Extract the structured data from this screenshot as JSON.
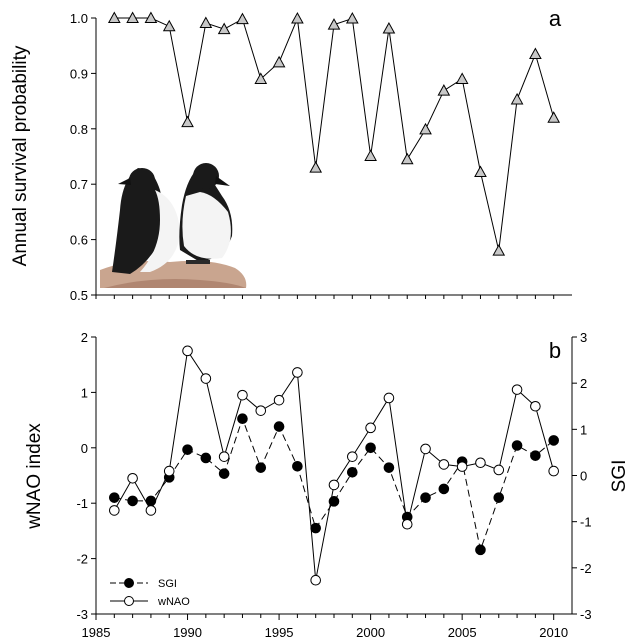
{
  "chart_data": [
    {
      "type": "line",
      "panel_label": "a",
      "ylabel": "Annual survival probability",
      "xlim": [
        1985,
        2011
      ],
      "ylim": [
        0.5,
        1.0
      ],
      "yticks": [
        "0.5",
        "0.6",
        "0.7",
        "0.8",
        "0.9",
        "1.0"
      ],
      "grid": false,
      "marker": "triangle",
      "marker_color": "#c8c8c8",
      "line_color": "#000000",
      "image": "two-guillemots-photo",
      "x": [
        1986,
        1987,
        1988,
        1989,
        1990,
        1991,
        1992,
        1993,
        1994,
        1995,
        1996,
        1997,
        1998,
        1999,
        2000,
        2001,
        2002,
        2003,
        2004,
        2005,
        2006,
        2007,
        2008,
        2009,
        2010
      ],
      "series": [
        {
          "values": [
            1.0,
            1.0,
            1.0,
            0.985,
            0.812,
            0.991,
            0.98,
            0.998,
            0.89,
            0.92,
            0.999,
            0.73,
            0.988,
            0.999,
            0.751,
            0.981,
            0.745,
            0.799,
            0.869,
            0.89,
            0.722,
            0.58,
            0.853,
            0.935,
            0.82
          ]
        }
      ]
    },
    {
      "type": "line",
      "panel_label": "b",
      "ylabel": "wNAO index",
      "y2label": "SGI",
      "xlim": [
        1985,
        2011
      ],
      "xticks": [
        "1985",
        "1990",
        "1995",
        "2000",
        "2005",
        "2010"
      ],
      "ylim": [
        -3,
        2
      ],
      "yticks": [
        "-3",
        "-2",
        "-1",
        "0",
        "1",
        "2"
      ],
      "y2lim": [
        -3,
        3
      ],
      "y2ticks": [
        "-3",
        "-2",
        "-1",
        "0",
        "1",
        "2",
        "3"
      ],
      "grid": false,
      "legend_position": "bottom-left",
      "x": [
        1986,
        1987,
        1988,
        1989,
        1990,
        1991,
        1992,
        1993,
        1994,
        1995,
        1996,
        1997,
        1998,
        1999,
        2000,
        2001,
        2002,
        2003,
        2004,
        2005,
        2006,
        2007,
        2008,
        2009,
        2010
      ],
      "series": [
        {
          "name": "SGI",
          "axis": "right",
          "line_style": "dashed",
          "marker": "filled-circle",
          "values": [
            -0.48,
            -0.55,
            -0.55,
            -0.04,
            0.56,
            0.38,
            0.04,
            1.23,
            0.17,
            1.06,
            0.2,
            -1.14,
            -0.56,
            0.07,
            0.6,
            0.17,
            -0.9,
            -0.48,
            -0.29,
            0.3,
            -1.61,
            -0.48,
            0.65,
            0.43,
            0.76
          ]
        },
        {
          "name": "wNAO",
          "axis": "left",
          "line_style": "solid",
          "marker": "open-circle",
          "values": [
            -1.13,
            -0.55,
            -1.13,
            -0.42,
            1.75,
            1.25,
            -0.16,
            0.95,
            0.67,
            0.86,
            1.36,
            -2.39,
            -0.67,
            -0.16,
            0.36,
            0.9,
            -1.38,
            -0.02,
            -0.3,
            -0.34,
            -0.27,
            -0.4,
            1.05,
            0.75,
            -0.42
          ]
        }
      ]
    }
  ]
}
